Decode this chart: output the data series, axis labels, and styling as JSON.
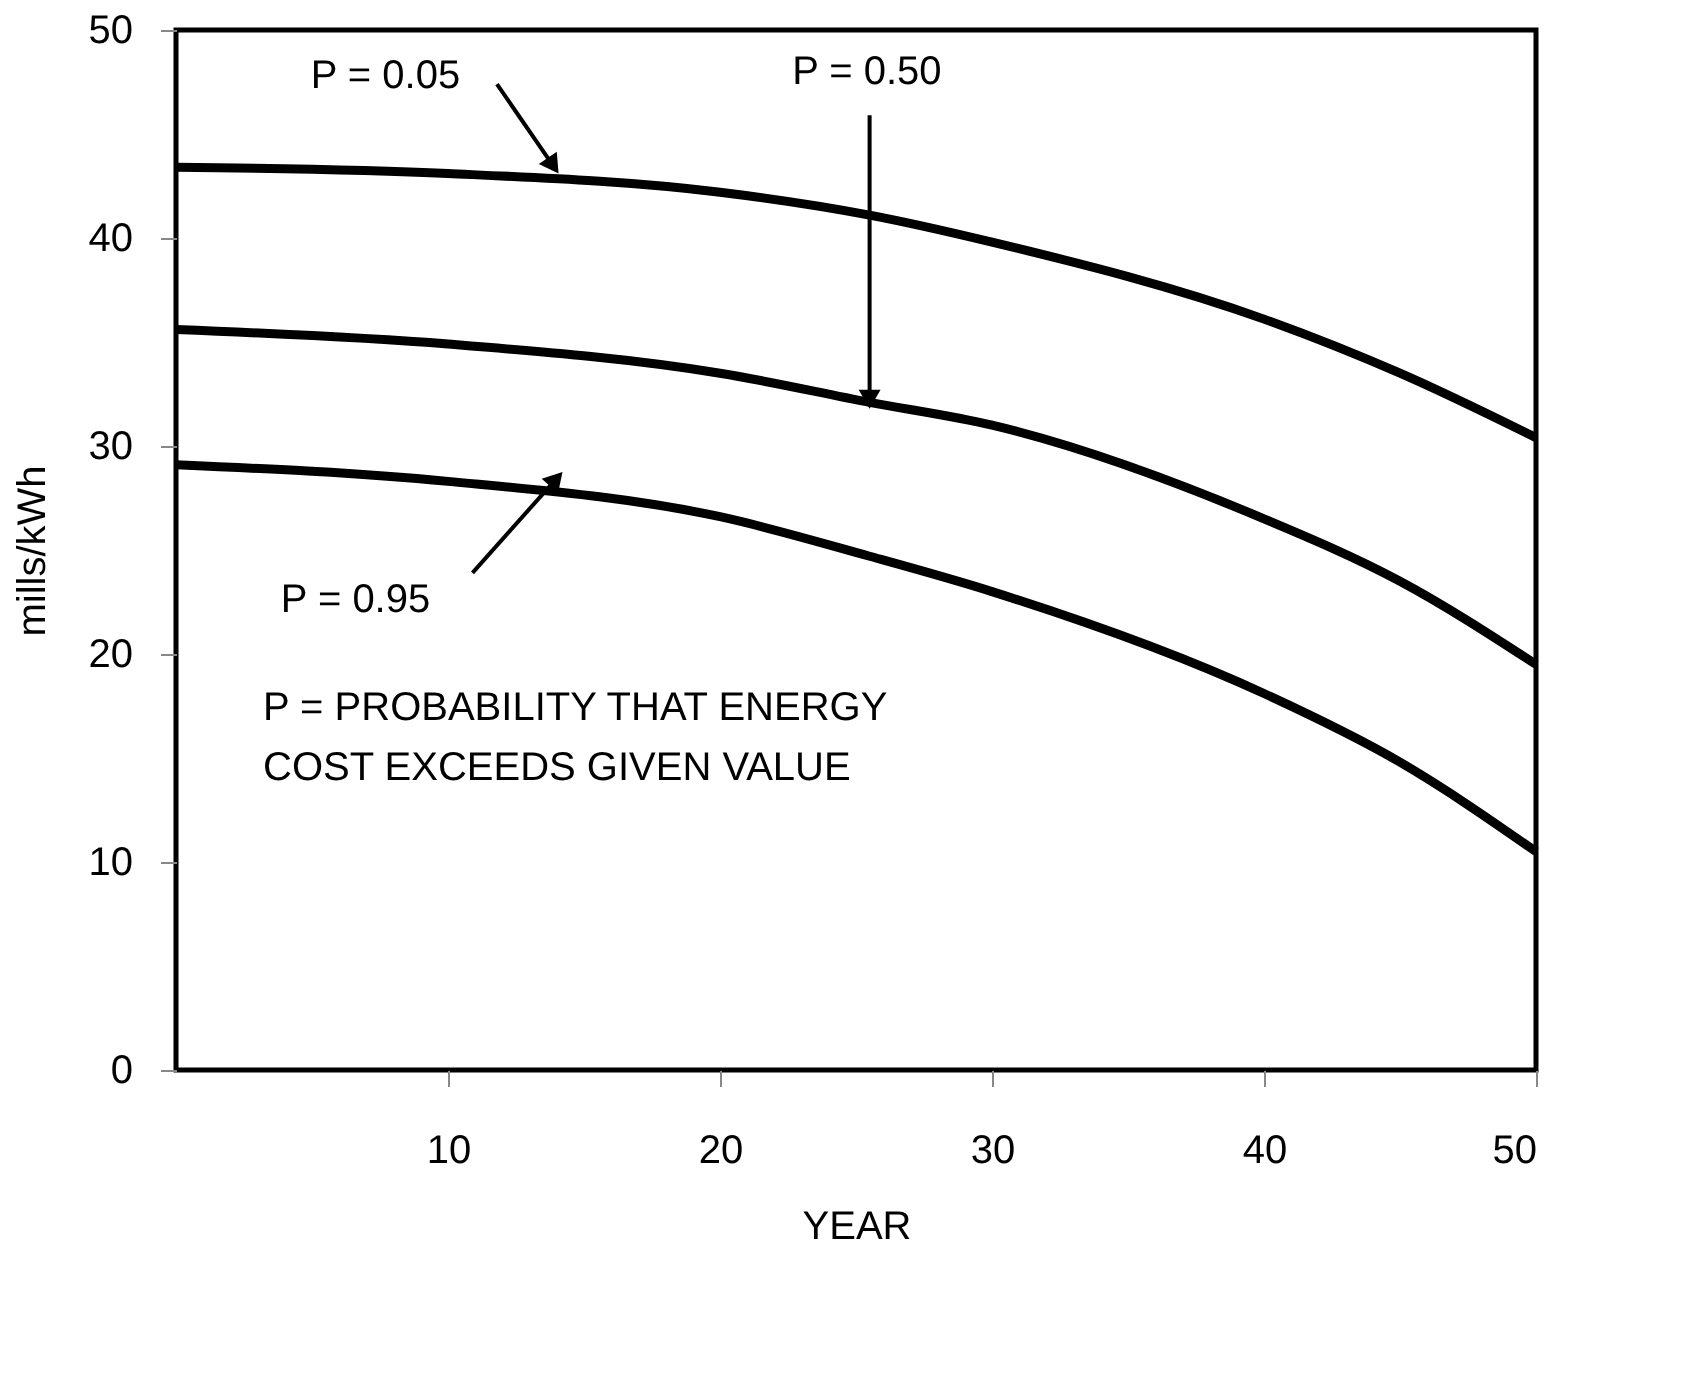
{
  "chart_data": {
    "type": "line",
    "xlabel": "YEAR",
    "ylabel": "mills/kWh",
    "x": [
      0,
      10,
      20,
      25.5,
      30,
      40,
      45,
      50
    ],
    "series": [
      {
        "color": "#000000",
        "values": [
          43.4,
          43.1,
          42.2,
          41.1,
          39.8,
          36.1,
          33.5,
          30.4
        ]
      },
      {
        "color": "#000000",
        "values": [
          35.6,
          34.9,
          33.5,
          32.1,
          31.0,
          26.5,
          23.5,
          19.5
        ]
      },
      {
        "color": "#000000",
        "values": [
          29.1,
          28.3,
          26.6,
          24.7,
          23.0,
          18.1,
          14.8,
          10.5
        ]
      }
    ],
    "xlim": [
      0,
      50
    ],
    "ylim": [
      0,
      50
    ],
    "xticks": [
      10,
      20,
      30,
      40,
      50
    ],
    "yticks": [
      0,
      10,
      20,
      30,
      40,
      50
    ],
    "grid": false,
    "line_style": "solid",
    "marker": "none",
    "annotations": [
      {
        "text": "P = 0.05",
        "x": 13.8,
        "y": 43.6
      },
      {
        "text": "P = 0.50",
        "x": 25.5,
        "y": 32.4
      },
      {
        "text": "P = 0.95",
        "x": 13.9,
        "y": 28.3
      },
      "P = PROBABILITY THAT ENERGY\n     COST EXCEEDS GIVEN VALUE"
    ]
  }
}
